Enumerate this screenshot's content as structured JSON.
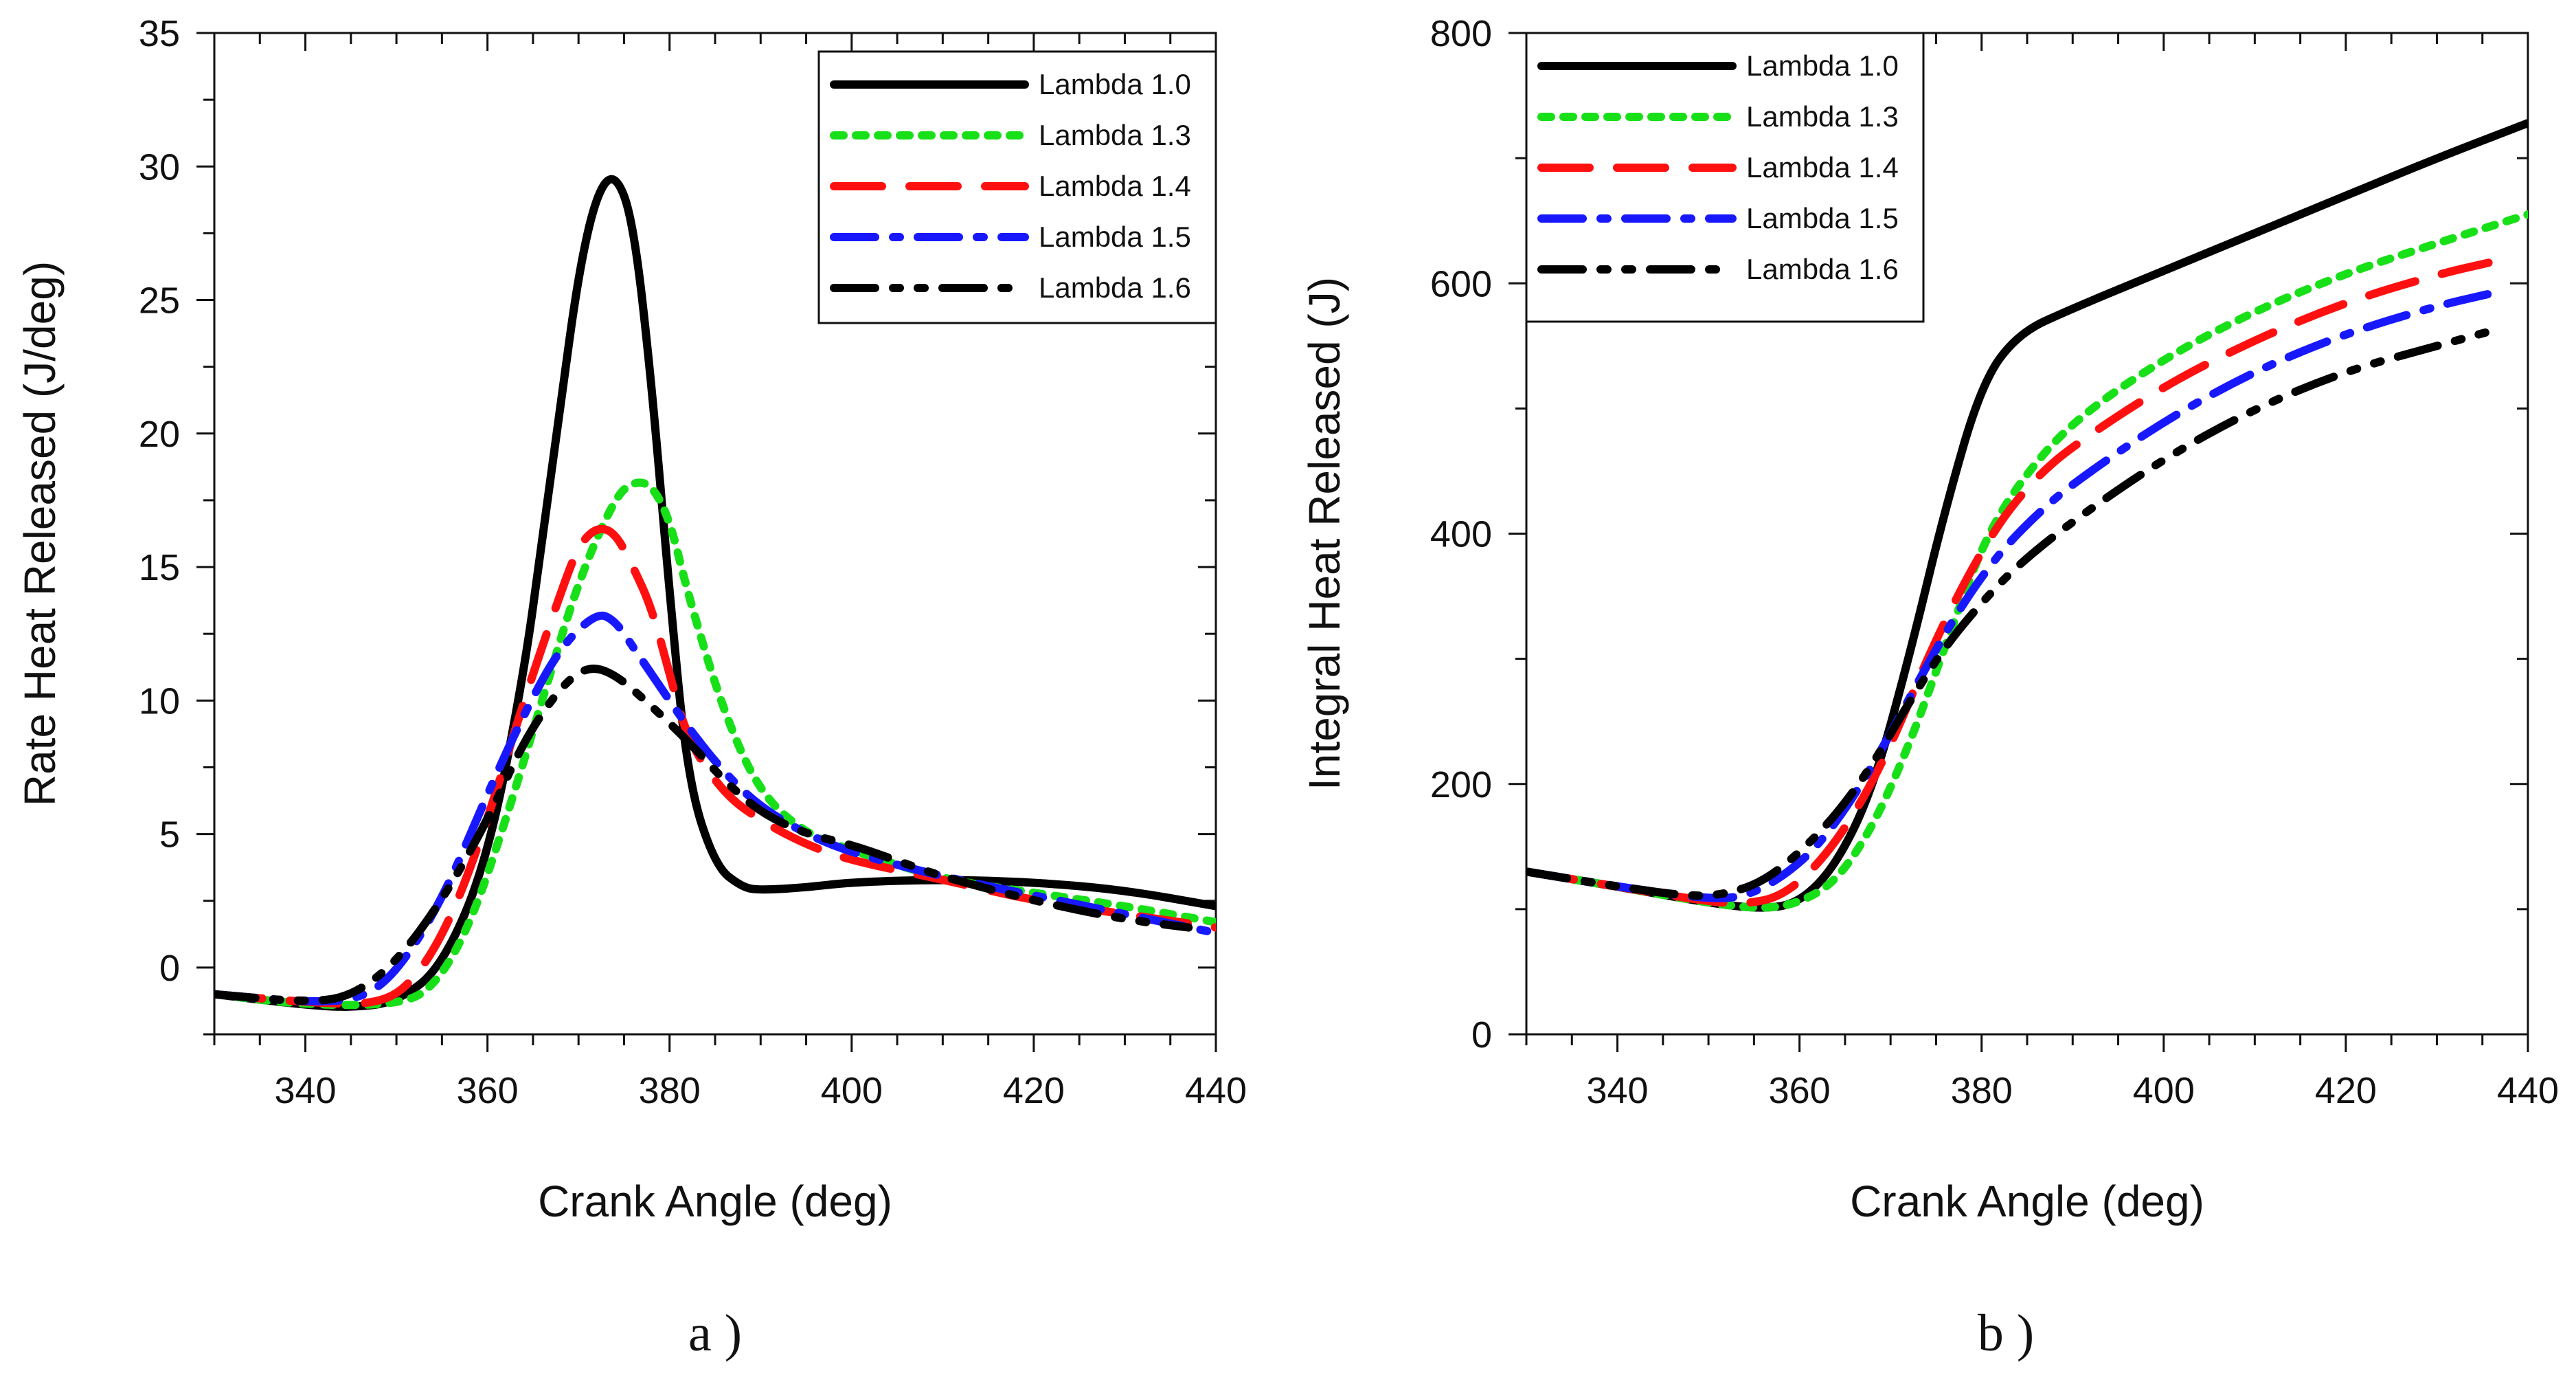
{
  "chart_data": [
    {
      "type": "line",
      "panel_label": "a )",
      "xlabel": "Crank Angle (deg)",
      "ylabel": "Rate Heat Released (J/deg)",
      "xlim": [
        330,
        440
      ],
      "ylim": [
        -2.5,
        35
      ],
      "xticks": [
        340,
        360,
        380,
        400,
        420,
        440
      ],
      "yticks": [
        0,
        5,
        10,
        15,
        20,
        25,
        30,
        35
      ],
      "legend_position": "top-right",
      "grid": false,
      "series": [
        {
          "name": "Lambda 1.0",
          "color": "#000000",
          "dash": "solid",
          "x": [
            330,
            340,
            345,
            350,
            355,
            360,
            364,
            366,
            368,
            370,
            372,
            374,
            376,
            378,
            380,
            382,
            385,
            388,
            390,
            395,
            400,
            410,
            420,
            430,
            440
          ],
          "y": [
            -1,
            -1.4,
            -1.5,
            -1.3,
            0,
            4,
            11,
            16,
            21,
            26,
            29,
            29.8,
            28,
            22,
            14,
            7,
            3.8,
            3,
            2.9,
            3,
            3.2,
            3.3,
            3.2,
            2.9,
            2.3
          ]
        },
        {
          "name": "Lambda 1.3",
          "color": "#18e018",
          "dash": "dot",
          "x": [
            330,
            340,
            350,
            354,
            358,
            362,
            366,
            370,
            374,
            376,
            378,
            380,
            382,
            386,
            390,
            395,
            400,
            410,
            420,
            430,
            440
          ],
          "y": [
            -1,
            -1.4,
            -1.4,
            -0.8,
            1.5,
            5.5,
            10,
            14.5,
            17.6,
            18.2,
            18.1,
            16.8,
            14,
            9.5,
            6.5,
            5,
            4.4,
            3.3,
            2.8,
            2.3,
            1.7
          ]
        },
        {
          "name": "Lambda 1.4",
          "color": "#ff1010",
          "dash": "dash",
          "x": [
            330,
            340,
            348,
            352,
            356,
            360,
            364,
            368,
            370,
            372,
            374,
            376,
            378,
            380,
            382,
            386,
            390,
            395,
            400,
            410,
            420,
            430,
            440
          ],
          "y": [
            -1,
            -1.3,
            -1.4,
            -0.5,
            1.8,
            5.5,
            10,
            14,
            15.8,
            16.5,
            16.3,
            15,
            13.5,
            11,
            8.5,
            6.5,
            5.5,
            4.6,
            4,
            3.3,
            2.5,
            2,
            1.5
          ]
        },
        {
          "name": "Lambda 1.5",
          "color": "#1818ff",
          "dash": "dashdot",
          "x": [
            330,
            340,
            346,
            350,
            355,
            360,
            364,
            368,
            372,
            374,
            376,
            378,
            382,
            386,
            390,
            395,
            400,
            410,
            420,
            430,
            440
          ],
          "y": [
            -1,
            -1.3,
            -1.2,
            -0.2,
            2.5,
            6.5,
            9.5,
            12,
            13.3,
            13,
            12,
            11,
            9,
            7.3,
            6,
            5,
            4.3,
            3.4,
            2.7,
            2,
            1.3
          ]
        },
        {
          "name": "Lambda 1.6",
          "color": "#000000",
          "dash": "dashdotdot",
          "x": [
            330,
            340,
            345,
            350,
            355,
            360,
            364,
            368,
            371,
            374,
            378,
            382,
            386,
            390,
            395,
            400,
            405,
            410,
            420,
            430,
            437
          ],
          "y": [
            -1,
            -1.3,
            -1.1,
            0.2,
            2.5,
            5.5,
            8.5,
            10.5,
            11.3,
            11,
            9.8,
            8.5,
            7,
            5.8,
            5,
            4.6,
            4,
            3.4,
            2.5,
            1.8,
            1.5
          ]
        }
      ]
    },
    {
      "type": "line",
      "panel_label": "b )",
      "xlabel": "Crank Angle (deg)",
      "ylabel": "Integral Heat Released (J)",
      "xlim": [
        330,
        440
      ],
      "ylim": [
        0,
        800
      ],
      "xticks": [
        340,
        360,
        380,
        400,
        420,
        440
      ],
      "yticks": [
        0,
        200,
        400,
        600,
        800
      ],
      "legend_position": "top-left",
      "grid": false,
      "series": [
        {
          "name": "Lambda 1.0",
          "color": "#000000",
          "dash": "solid",
          "x": [
            330,
            340,
            350,
            356,
            360,
            364,
            368,
            372,
            376,
            380,
            384,
            390,
            400,
            410,
            420,
            430,
            440
          ],
          "y": [
            130,
            118,
            105,
            100,
            105,
            135,
            195,
            300,
            420,
            520,
            560,
            580,
            610,
            640,
            670,
            700,
            728
          ]
        },
        {
          "name": "Lambda 1.3",
          "color": "#18e018",
          "dash": "dot",
          "x": [
            330,
            340,
            350,
            356,
            360,
            364,
            368,
            372,
            376,
            380,
            384,
            390,
            400,
            410,
            420,
            430,
            440
          ],
          "y": [
            130,
            118,
            105,
            100,
            105,
            122,
            165,
            230,
            310,
            390,
            440,
            490,
            540,
            578,
            608,
            632,
            655
          ]
        },
        {
          "name": "Lambda 1.4",
          "color": "#ff1010",
          "dash": "dash",
          "x": [
            330,
            340,
            350,
            354,
            358,
            362,
            366,
            370,
            374,
            378,
            382,
            386,
            390,
            400,
            410,
            420,
            430,
            436
          ],
          "y": [
            130,
            118,
            106,
            104,
            110,
            135,
            175,
            230,
            300,
            360,
            410,
            445,
            470,
            518,
            555,
            585,
            607,
            617
          ]
        },
        {
          "name": "Lambda 1.5",
          "color": "#1818ff",
          "dash": "dashdot",
          "x": [
            330,
            340,
            350,
            354,
            358,
            362,
            366,
            370,
            374,
            378,
            382,
            386,
            390,
            400,
            410,
            420,
            430,
            436
          ],
          "y": [
            130,
            118,
            108,
            110,
            125,
            150,
            190,
            240,
            295,
            345,
            385,
            415,
            440,
            490,
            530,
            560,
            582,
            592
          ]
        },
        {
          "name": "Lambda 1.6",
          "color": "#000000",
          "dash": "dashdotdot",
          "x": [
            330,
            340,
            348,
            352,
            356,
            360,
            364,
            368,
            372,
            376,
            380,
            384,
            390,
            400,
            410,
            420,
            430,
            436
          ],
          "y": [
            130,
            118,
            110,
            112,
            122,
            145,
            175,
            215,
            265,
            310,
            345,
            375,
            410,
            460,
            500,
            530,
            550,
            562
          ]
        }
      ]
    }
  ]
}
